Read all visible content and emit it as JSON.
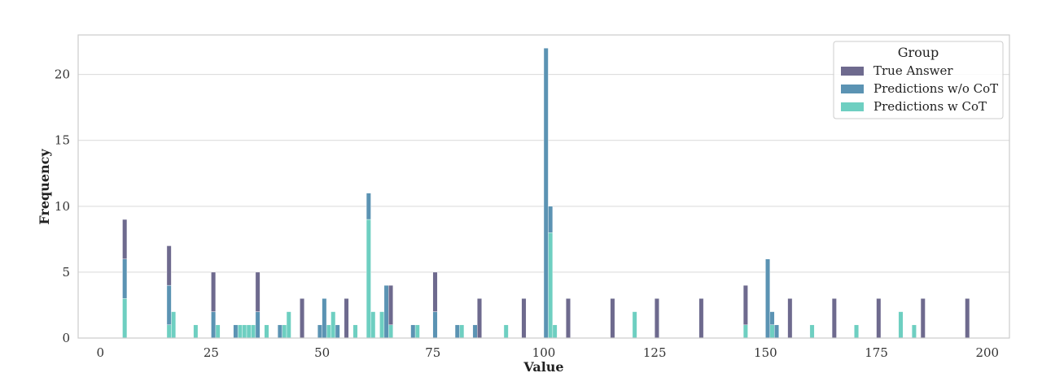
{
  "chart_data": {
    "type": "bar",
    "xlabel": "Value",
    "ylabel": "Frequency",
    "xlim": [
      -5,
      205
    ],
    "ylim": [
      0,
      23
    ],
    "x_ticks": [
      "0",
      "25",
      "50",
      "75",
      "100",
      "125",
      "150",
      "175",
      "200"
    ],
    "y_ticks": [
      "0",
      "5",
      "10",
      "15",
      "20"
    ],
    "grid": true,
    "stacked": true,
    "bin_width": 1,
    "legend": {
      "title": "Group",
      "position": "top-right",
      "entries": [
        "True Answer",
        "Predictions w/o CoT",
        "Predictions w CoT"
      ]
    },
    "series": [
      {
        "name": "Predictions w CoT",
        "color": "#6ecfc1",
        "points": [
          [
            5,
            3
          ],
          [
            15,
            1
          ],
          [
            16,
            2
          ],
          [
            21,
            1
          ],
          [
            26,
            1
          ],
          [
            31,
            1
          ],
          [
            32,
            1
          ],
          [
            33,
            1
          ],
          [
            34,
            1
          ],
          [
            37,
            1
          ],
          [
            41,
            1
          ],
          [
            42,
            2
          ],
          [
            51,
            1
          ],
          [
            52,
            2
          ],
          [
            57,
            1
          ],
          [
            60,
            9
          ],
          [
            61,
            2
          ],
          [
            63,
            2
          ],
          [
            65,
            1
          ],
          [
            71,
            1
          ],
          [
            81,
            1
          ],
          [
            91,
            1
          ],
          [
            101,
            8
          ],
          [
            102,
            1
          ],
          [
            120,
            2
          ],
          [
            145,
            1
          ],
          [
            151,
            1
          ],
          [
            160,
            1
          ],
          [
            170,
            1
          ],
          [
            180,
            2
          ],
          [
            183,
            1
          ]
        ]
      },
      {
        "name": "Predictions w/o CoT",
        "color": "#5b93b3",
        "points": [
          [
            5,
            3
          ],
          [
            15,
            3
          ],
          [
            25,
            2
          ],
          [
            30,
            1
          ],
          [
            35,
            2
          ],
          [
            40,
            1
          ],
          [
            49,
            1
          ],
          [
            50,
            3
          ],
          [
            53,
            1
          ],
          [
            60,
            2
          ],
          [
            64,
            4
          ],
          [
            70,
            1
          ],
          [
            75,
            2
          ],
          [
            80,
            1
          ],
          [
            84,
            1
          ],
          [
            100,
            22
          ],
          [
            101,
            2
          ],
          [
            150,
            6
          ],
          [
            151,
            1
          ],
          [
            152,
            1
          ]
        ]
      },
      {
        "name": "True Answer",
        "color": "#6e6a8e",
        "points": [
          [
            5,
            3
          ],
          [
            15,
            3
          ],
          [
            25,
            3
          ],
          [
            35,
            3
          ],
          [
            45,
            3
          ],
          [
            55,
            3
          ],
          [
            65,
            3
          ],
          [
            75,
            3
          ],
          [
            85,
            3
          ],
          [
            95,
            3
          ],
          [
            105,
            3
          ],
          [
            115,
            3
          ],
          [
            125,
            3
          ],
          [
            135,
            3
          ],
          [
            145,
            3
          ],
          [
            155,
            3
          ],
          [
            165,
            3
          ],
          [
            175,
            3
          ],
          [
            185,
            3
          ],
          [
            195,
            3
          ]
        ]
      }
    ]
  }
}
